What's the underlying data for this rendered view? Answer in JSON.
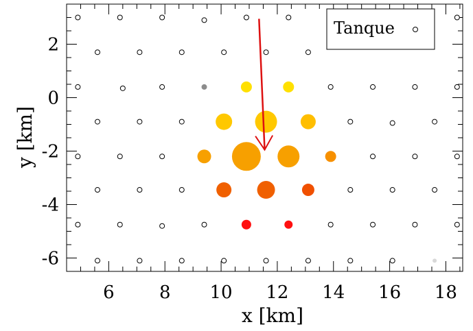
{
  "chart_data": {
    "type": "scatter",
    "xlabel": "x [km]",
    "ylabel": "y [km]",
    "xlim": [
      4.5,
      18.6
    ],
    "ylim": [
      -6.5,
      3.5
    ],
    "x_ticks": [
      6,
      8,
      10,
      12,
      14,
      16,
      18
    ],
    "y_ticks": [
      2,
      0,
      -2,
      -4,
      -6
    ],
    "x_tick_labels": [
      "6",
      "8",
      "10",
      "12",
      "14",
      "16",
      "18"
    ],
    "y_tick_labels": [
      "2",
      "0",
      "-2",
      "-4",
      "-6"
    ],
    "grid": false,
    "legend": {
      "position": "top-right",
      "entries": [
        {
          "label": "Tanque",
          "marker": "open-circle"
        }
      ]
    },
    "tanks_empty": [
      {
        "x": 4.9,
        "y": 3.0
      },
      {
        "x": 6.4,
        "y": 3.0
      },
      {
        "x": 7.9,
        "y": 3.0
      },
      {
        "x": 9.4,
        "y": 2.9
      },
      {
        "x": 10.9,
        "y": 3.0
      },
      {
        "x": 12.4,
        "y": 3.0
      },
      {
        "x": 18.4,
        "y": 3.0
      },
      {
        "x": 5.6,
        "y": 1.7
      },
      {
        "x": 7.1,
        "y": 1.7
      },
      {
        "x": 8.6,
        "y": 1.7
      },
      {
        "x": 10.1,
        "y": 1.7
      },
      {
        "x": 11.6,
        "y": 1.7
      },
      {
        "x": 13.1,
        "y": 1.7
      },
      {
        "x": 4.9,
        "y": 0.4
      },
      {
        "x": 6.5,
        "y": 0.35
      },
      {
        "x": 7.9,
        "y": 0.4
      },
      {
        "x": 13.9,
        "y": 0.4
      },
      {
        "x": 15.4,
        "y": 0.4
      },
      {
        "x": 16.9,
        "y": 0.4
      },
      {
        "x": 18.4,
        "y": 0.4
      },
      {
        "x": 5.6,
        "y": -0.9
      },
      {
        "x": 7.1,
        "y": -0.9
      },
      {
        "x": 8.6,
        "y": -0.9
      },
      {
        "x": 14.6,
        "y": -0.9
      },
      {
        "x": 16.1,
        "y": -0.95
      },
      {
        "x": 17.6,
        "y": -0.9
      },
      {
        "x": 4.9,
        "y": -2.2
      },
      {
        "x": 6.4,
        "y": -2.2
      },
      {
        "x": 7.9,
        "y": -2.2
      },
      {
        "x": 15.4,
        "y": -2.2
      },
      {
        "x": 16.9,
        "y": -2.2
      },
      {
        "x": 18.4,
        "y": -2.2
      },
      {
        "x": 5.6,
        "y": -3.45
      },
      {
        "x": 7.1,
        "y": -3.45
      },
      {
        "x": 8.6,
        "y": -3.45
      },
      {
        "x": 14.6,
        "y": -3.45
      },
      {
        "x": 16.1,
        "y": -3.45
      },
      {
        "x": 17.6,
        "y": -3.45
      },
      {
        "x": 4.9,
        "y": -4.75
      },
      {
        "x": 6.4,
        "y": -4.75
      },
      {
        "x": 7.9,
        "y": -4.8
      },
      {
        "x": 9.4,
        "y": -4.75
      },
      {
        "x": 13.9,
        "y": -4.75
      },
      {
        "x": 15.4,
        "y": -4.75
      },
      {
        "x": 16.9,
        "y": -4.75
      },
      {
        "x": 18.4,
        "y": -4.75
      },
      {
        "x": 5.6,
        "y": -6.1
      },
      {
        "x": 7.1,
        "y": -6.1
      },
      {
        "x": 8.6,
        "y": -6.1
      },
      {
        "x": 10.1,
        "y": -6.1
      },
      {
        "x": 11.6,
        "y": -6.1
      },
      {
        "x": 13.1,
        "y": -6.1
      },
      {
        "x": 14.6,
        "y": -6.1
      },
      {
        "x": 16.1,
        "y": -6.1
      }
    ],
    "tanks_hit": [
      {
        "x": 9.4,
        "y": 0.4,
        "r": 4,
        "color": "#8c8c8c"
      },
      {
        "x": 17.6,
        "y": -6.1,
        "r": 3,
        "color": "#d8d8d8"
      },
      {
        "x": 10.9,
        "y": 0.4,
        "r": 8,
        "color": "#ffe000"
      },
      {
        "x": 12.4,
        "y": 0.4,
        "r": 8,
        "color": "#ffe000"
      },
      {
        "x": 10.1,
        "y": -0.9,
        "r": 12,
        "color": "#ffc800"
      },
      {
        "x": 11.6,
        "y": -0.9,
        "r": 16,
        "color": "#ffc800"
      },
      {
        "x": 13.1,
        "y": -0.9,
        "r": 11,
        "color": "#ffbe00"
      },
      {
        "x": 9.4,
        "y": -2.2,
        "r": 10,
        "color": "#f7a000"
      },
      {
        "x": 10.9,
        "y": -2.2,
        "r": 21,
        "color": "#f7a000"
      },
      {
        "x": 12.4,
        "y": -2.2,
        "r": 16,
        "color": "#f7a000"
      },
      {
        "x": 13.9,
        "y": -2.2,
        "r": 8,
        "color": "#f79000"
      },
      {
        "x": 10.1,
        "y": -3.45,
        "r": 11,
        "color": "#f06000"
      },
      {
        "x": 11.6,
        "y": -3.45,
        "r": 13,
        "color": "#f06000"
      },
      {
        "x": 13.1,
        "y": -3.45,
        "r": 9,
        "color": "#f05000"
      },
      {
        "x": 10.9,
        "y": -4.75,
        "r": 7,
        "color": "#ff1010"
      },
      {
        "x": 12.4,
        "y": -4.75,
        "r": 6,
        "color": "#ff1010"
      }
    ],
    "shower_axis": {
      "color": "#dd1111",
      "from": {
        "x": 11.35,
        "y": 2.95
      },
      "to": {
        "x": 11.55,
        "y": -1.95
      }
    }
  }
}
